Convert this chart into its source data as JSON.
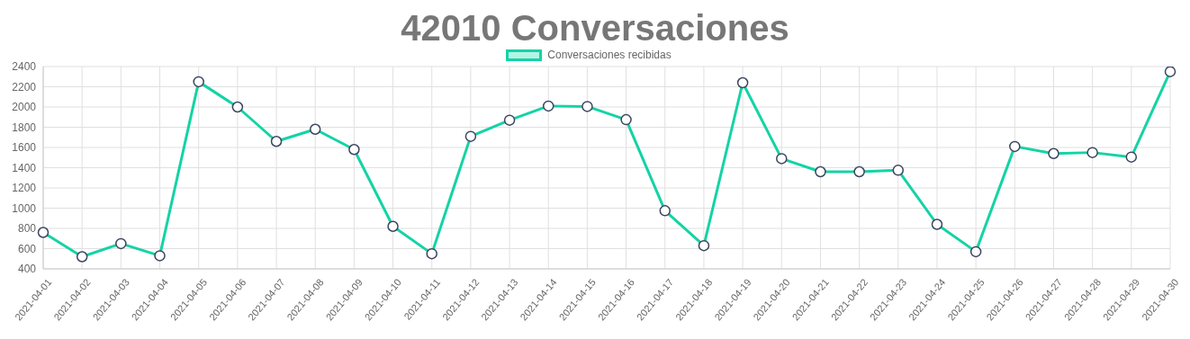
{
  "chart_data": {
    "type": "line",
    "title": "42010 Conversaciones",
    "categories": [
      "2021-04-01",
      "2021-04-02",
      "2021-04-03",
      "2021-04-04",
      "2021-04-05",
      "2021-04-06",
      "2021-04-07",
      "2021-04-08",
      "2021-04-09",
      "2021-04-10",
      "2021-04-11",
      "2021-04-12",
      "2021-04-13",
      "2021-04-14",
      "2021-04-15",
      "2021-04-16",
      "2021-04-17",
      "2021-04-18",
      "2021-04-19",
      "2021-04-20",
      "2021-04-21",
      "2021-04-22",
      "2021-04-23",
      "2021-04-24",
      "2021-04-25",
      "2021-04-26",
      "2021-04-27",
      "2021-04-28",
      "2021-04-29",
      "2021-04-30"
    ],
    "series": [
      {
        "name": "Conversaciones recibidas",
        "color": "#14d3a5",
        "values": [
          760,
          520,
          650,
          530,
          2250,
          2000,
          1660,
          1780,
          1580,
          820,
          550,
          1710,
          1870,
          2010,
          2005,
          1875,
          975,
          630,
          2240,
          1490,
          1360,
          1360,
          1375,
          840,
          570,
          1610,
          1540,
          1550,
          1505,
          2350
        ]
      }
    ],
    "ylim": [
      400,
      2400
    ],
    "yticks": [
      400,
      600,
      800,
      1000,
      1200,
      1400,
      1600,
      1800,
      2000,
      2200,
      2400
    ],
    "grid": true,
    "legend": "top",
    "marker": "circle",
    "line_style": "solid"
  }
}
